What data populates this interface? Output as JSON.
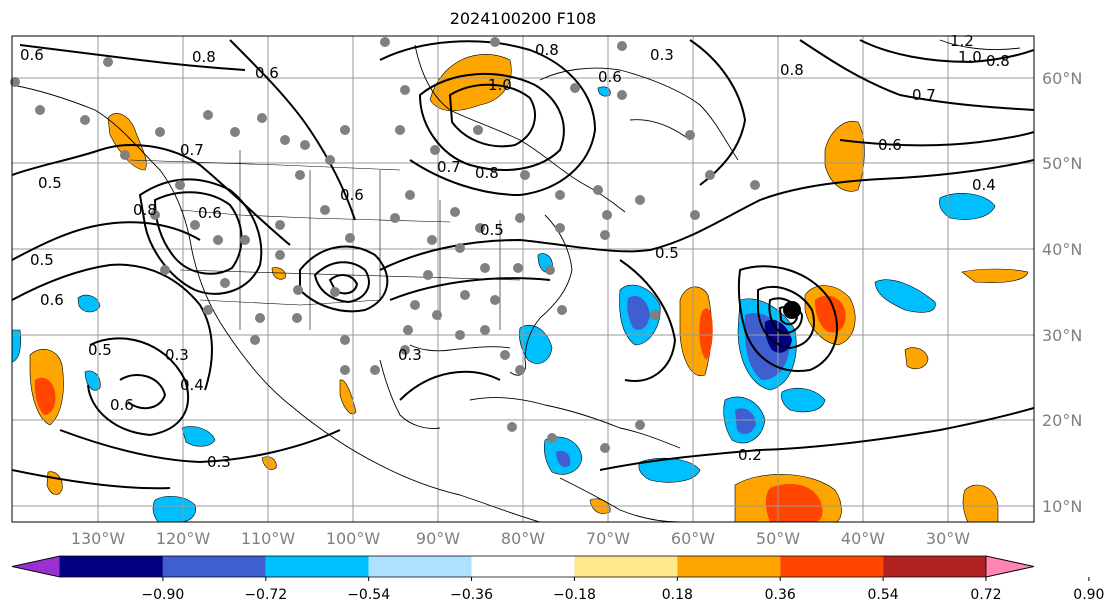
{
  "title": "2024100200 F108",
  "lat_labels": [
    "60°N",
    "50°N",
    "40°N",
    "30°N",
    "20°N",
    "10°N"
  ],
  "lon_labels": [
    "130°W",
    "120°W",
    "110°W",
    "100°W",
    "90°W",
    "80°W",
    "70°W",
    "60°W",
    "50°W",
    "40°W",
    "30°W"
  ],
  "contour_labels": [
    "0.8",
    "0.6",
    "0.5",
    "0.7",
    "0.6",
    "0.8",
    "0.5",
    "0.6",
    "0.5",
    "0.6",
    "0.3",
    "0.4",
    "0.6",
    "0.3",
    "1.0",
    "0.8",
    "0.7",
    "0.8",
    "0.3",
    "0.5",
    "0.5",
    "0.6",
    "0.8",
    "0.6",
    "0.7",
    "0.6",
    "0.4",
    "1.0",
    "0.8",
    "1.2",
    "0.2",
    "0.3"
  ],
  "colorbar": {
    "ticks": [
      "−0.90",
      "−0.72",
      "−0.54",
      "−0.36",
      "−0.18",
      "0.18",
      "0.36",
      "0.54",
      "0.72",
      "0.90"
    ],
    "colors": [
      "#9b30d0",
      "#000080",
      "#3f5fd0",
      "#00bfff",
      "#aee0ff",
      "#ffffff",
      "#fde88c",
      "#ffa500",
      "#ff4500",
      "#b22222",
      "#ff85b4"
    ]
  },
  "colors": {
    "axis": "#000000",
    "grid": "#999999",
    "label_gray": "#808080"
  }
}
